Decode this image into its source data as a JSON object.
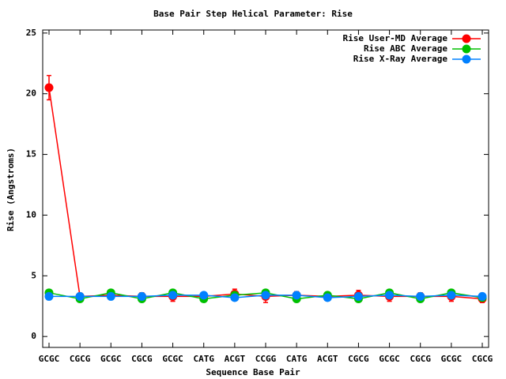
{
  "chart_data": {
    "type": "line",
    "title": "Base Pair Step Helical Parameter: Rise",
    "x_label": "Sequence Base Pair",
    "y_label": "Rise (Angstroms)",
    "categories": [
      "GCGC",
      "CGCG",
      "GCGC",
      "CGCG",
      "GCGC",
      "CATG",
      "ACGT",
      "CCGG",
      "CATG",
      "ACGT",
      "CGCG",
      "GCGC",
      "CGCG",
      "GCGC",
      "CGCG"
    ],
    "series": [
      {
        "name": "Rise User-MD Average",
        "color": "#ff0000",
        "values": [
          20.5,
          3.3,
          3.4,
          3.3,
          3.3,
          3.3,
          3.5,
          3.3,
          3.4,
          3.3,
          3.4,
          3.3,
          3.3,
          3.3,
          3.1
        ],
        "errors": [
          1.0,
          0.2,
          0.3,
          0.3,
          0.4,
          0.2,
          0.4,
          0.5,
          0.3,
          0.2,
          0.4,
          0.4,
          0.3,
          0.4,
          0.3
        ]
      },
      {
        "name": "Rise ABC Average",
        "color": "#00c000",
        "values": [
          3.6,
          3.1,
          3.6,
          3.1,
          3.6,
          3.1,
          3.4,
          3.6,
          3.1,
          3.4,
          3.1,
          3.6,
          3.1,
          3.6,
          3.2
        ]
      },
      {
        "name": "Rise X-Ray Average",
        "color": "#0080ff",
        "values": [
          3.3,
          3.3,
          3.3,
          3.3,
          3.4,
          3.4,
          3.2,
          3.4,
          3.4,
          3.2,
          3.3,
          3.4,
          3.3,
          3.4,
          3.3
        ]
      }
    ],
    "ylim": [
      -0.9,
      25.25
    ],
    "yticks": [
      0,
      5,
      10,
      15,
      20,
      25
    ],
    "legend": "top-right"
  }
}
